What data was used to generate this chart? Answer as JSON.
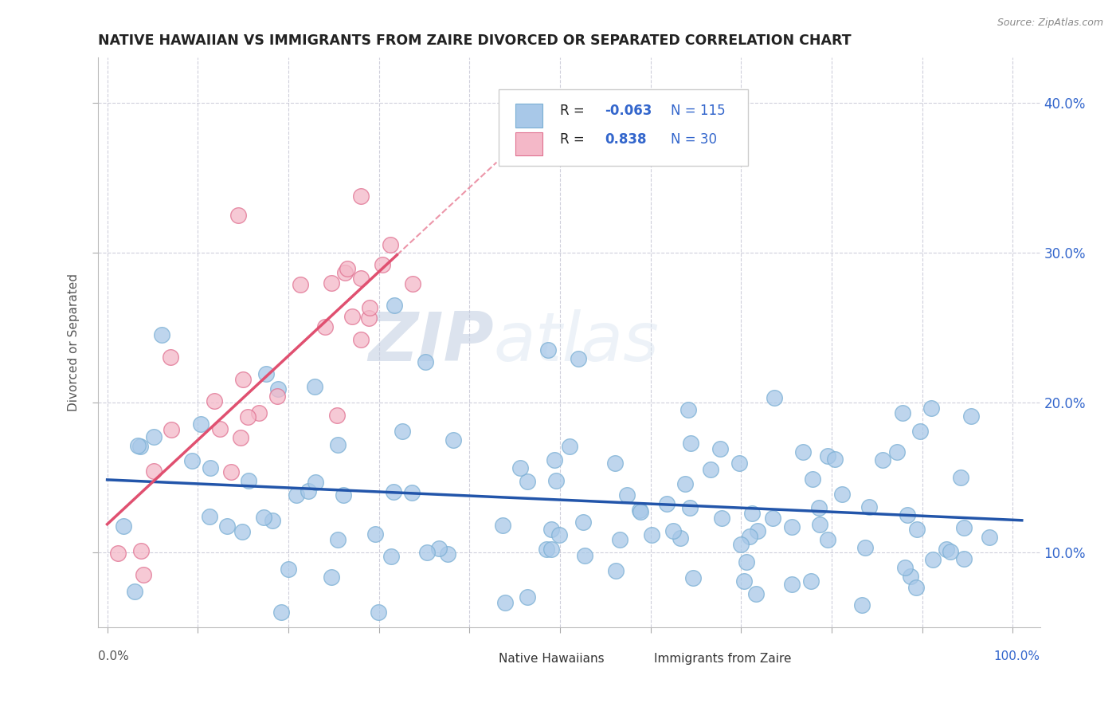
{
  "title": "NATIVE HAWAIIAN VS IMMIGRANTS FROM ZAIRE DIVORCED OR SEPARATED CORRELATION CHART",
  "source": "Source: ZipAtlas.com",
  "ylabel": "Divorced or Separated",
  "series1_color": "#a8c8e8",
  "series1_edge": "#7aafd4",
  "series2_color": "#f4b8c8",
  "series2_edge": "#e07090",
  "trendline1_color": "#2255aa",
  "trendline2_color": "#e05070",
  "watermark_color": "#d0dff0",
  "r1": "-0.063",
  "n1": "115",
  "r2": "0.838",
  "n2": "30",
  "ylim_min": 0.05,
  "ylim_max": 0.43,
  "xlim_min": -0.01,
  "xlim_max": 1.03,
  "ytick_vals": [
    0.1,
    0.2,
    0.3,
    0.4
  ],
  "ytick_labels": [
    "10.0%",
    "20.0%",
    "30.0%",
    "40.0%"
  ],
  "background_color": "#ffffff",
  "grid_color": "#bbbbcc",
  "r_text_color": "#3366cc",
  "legend_box_color": "#aaaacc"
}
